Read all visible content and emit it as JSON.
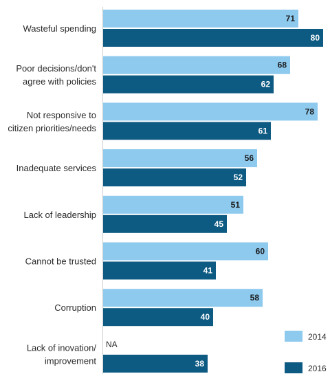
{
  "chart_data": {
    "type": "bar",
    "orientation": "horizontal",
    "categories": [
      [
        "Wasteful spending"
      ],
      [
        "Poor decisions/don't",
        "agree with policies"
      ],
      [
        "Not responsive to",
        "citizen priorities/needs"
      ],
      [
        "Inadequate services"
      ],
      [
        "Lack of leadership"
      ],
      [
        "Cannot be trusted"
      ],
      [
        "Corruption"
      ],
      [
        "Lack of inovation/",
        "improvement"
      ]
    ],
    "series": [
      {
        "name": "2014",
        "color": "#8ec9ee",
        "label_color": "#1a1a1a",
        "values": [
          71,
          68,
          78,
          56,
          51,
          60,
          58,
          null
        ]
      },
      {
        "name": "2016",
        "color": "#0d5a82",
        "label_color": "#ffffff",
        "values": [
          80,
          62,
          61,
          52,
          45,
          41,
          40,
          38
        ]
      }
    ],
    "missing_label": "NA",
    "xlim": [
      0,
      80
    ],
    "legend_position": "bottom-right",
    "grid": false,
    "title": "",
    "xlabel": "",
    "ylabel": ""
  }
}
